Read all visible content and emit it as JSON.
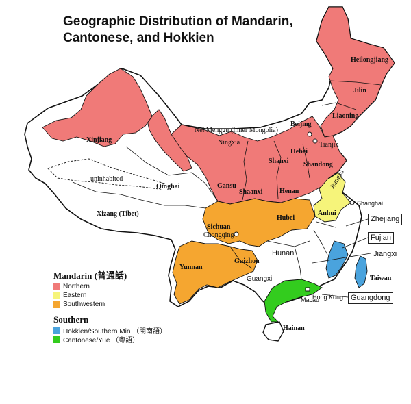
{
  "title": "Geographic Distribution of Mandarin, Cantonese, and Hokkien",
  "colors": {
    "northern": "#f07a78",
    "eastern": "#f6f47a",
    "southwestern": "#f5a630",
    "hokkien": "#4aa3dd",
    "cantonese": "#33cc1e",
    "border": "#111111",
    "land": "#ffffff"
  },
  "regions": {
    "heilongjiang": "Heilongjiang",
    "jilin": "Jilin",
    "liaoning": "Liaoning",
    "beijing": "Beijing",
    "tianjin": "Tianjin",
    "hebei": "Hebei",
    "shandong": "Shandong",
    "shanxi": "Shanxi",
    "henan": "Henan",
    "inner_mongolia": "Nei Menggu (Inner Mongolia)",
    "ningxia": "Ningxia",
    "gansu": "Gansu",
    "shaanxi": "Shaanxi",
    "xinjiang": "Xinjiang",
    "qinghai": "Qinghai",
    "uninhabited": "uninhabited",
    "tibet": "Xizang (Tibet)",
    "sichuan": "Sichuan",
    "chongqing": "Chongqing",
    "hubei": "Hubei",
    "anhui": "Anhui",
    "jiangsu": "Jiangsu",
    "shanghai": "Shanghai",
    "yunnan": "Yunnan",
    "guizhou": "Guizhou",
    "hunan": "Hunan",
    "guangxi": "Guangxi",
    "hong_kong": "Hong Kong",
    "macau": "Macau",
    "hainan": "Hainan",
    "taiwan": "Taiwan"
  },
  "callouts": {
    "zhejiang": "Zhejiang",
    "fujian": "Fujian",
    "jiangxi": "Jiangxi",
    "guangdong": "Guangdong"
  },
  "legend": {
    "mandarin_head": "Mandarin (普通話)",
    "northern": "Northern",
    "eastern": "Eastern",
    "southwestern": "Southwestern",
    "southern_head": "Southern",
    "hokkien": "Hokkien/Southern Min （閩南語）",
    "cantonese": "Cantonese/Yue （粵語）"
  }
}
